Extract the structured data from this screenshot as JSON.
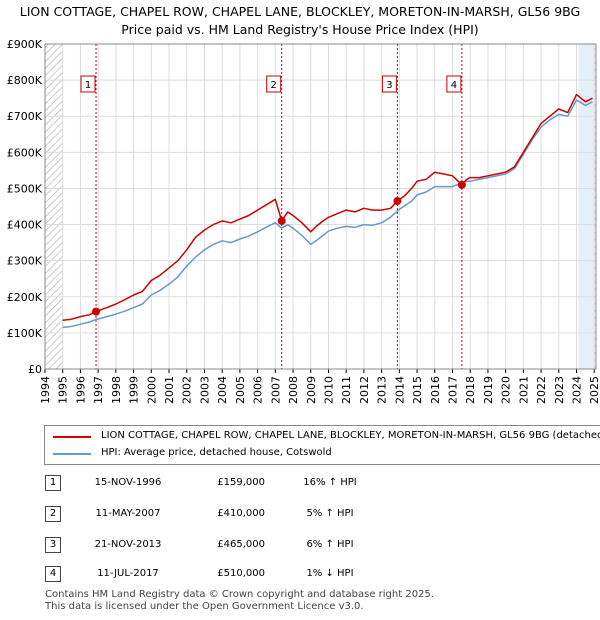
{
  "header": {
    "title_line1": "LION COTTAGE, CHAPEL ROW, CHAPEL LANE, BLOCKLEY, MORETON-IN-MARSH, GL56 9BG",
    "title_line2": "Price paid vs. HM Land Registry's House Price Index (HPI)"
  },
  "colors": {
    "red": "#cc0000",
    "blue": "#6699cc",
    "band": "#e6eef8",
    "grid": "#dddddd"
  },
  "legend": {
    "red_label": "LION COTTAGE, CHAPEL ROW, CHAPEL LANE, BLOCKLEY, MORETON-IN-MARSH, GL56 9BG (detached house)",
    "blue_label": "HPI: Average price, detached house, Cotswold"
  },
  "transactions": [
    {
      "num": "1",
      "date": "15-NOV-1996",
      "price": "£159,000",
      "hpi": "16% ↑ HPI"
    },
    {
      "num": "2",
      "date": "11-MAY-2007",
      "price": "£410,000",
      "hpi": "5% ↑ HPI"
    },
    {
      "num": "3",
      "date": "21-NOV-2013",
      "price": "£465,000",
      "hpi": "6% ↑ HPI"
    },
    {
      "num": "4",
      "date": "11-JUL-2017",
      "price": "£510,000",
      "hpi": "1% ↓ HPI"
    }
  ],
  "footer": {
    "line1": "Contains HM Land Registry data © Crown copyright and database right 2025.",
    "line2": "This data is licensed under the Open Government Licence v3.0."
  },
  "chart_data": {
    "type": "line",
    "title": "LION COTTAGE, CHAPEL ROW, CHAPEL LANE, BLOCKLEY, MORETON-IN-MARSH, GL56 9BG",
    "subtitle": "Price paid vs. HM Land Registry's House Price Index (HPI)",
    "xlabel": "",
    "ylabel": "",
    "xlim": [
      1994,
      2025.1
    ],
    "ylim": [
      0,
      900000
    ],
    "x_ticks": [
      1994,
      1995,
      1996,
      1997,
      1998,
      1999,
      2000,
      2001,
      2002,
      2003,
      2004,
      2005,
      2006,
      2007,
      2008,
      2009,
      2010,
      2011,
      2012,
      2013,
      2014,
      2015,
      2016,
      2017,
      2018,
      2019,
      2020,
      2021,
      2022,
      2023,
      2024,
      2025
    ],
    "y_ticks": [
      0,
      100000,
      200000,
      300000,
      400000,
      500000,
      600000,
      700000,
      800000,
      900000
    ],
    "y_tick_labels": [
      "£0",
      "£100K",
      "£200K",
      "£300K",
      "£400K",
      "£500K",
      "£600K",
      "£700K",
      "£800K",
      "£900K"
    ],
    "grid": true,
    "hatched_regions": [
      [
        1994,
        1995
      ],
      [
        2025,
        2025.1
      ]
    ],
    "band": [
      2024.1,
      2025
    ],
    "series": [
      {
        "name": "LION COTTAGE, CHAPEL ROW, CHAPEL LANE, BLOCKLEY, MORETON-IN-MARSH, GL56 9BG (detached house)",
        "color": "#cc0000",
        "x": [
          1995,
          1995.5,
          1996,
          1996.5,
          1996.88,
          1997.5,
          1998,
          1998.5,
          1999,
          1999.5,
          2000,
          2000.5,
          2001,
          2001.5,
          2002,
          2002.5,
          2003,
          2003.5,
          2004,
          2004.5,
          2005,
          2005.5,
          2006,
          2006.5,
          2007,
          2007.36,
          2007.7,
          2008,
          2008.5,
          2009,
          2009.3,
          2009.7,
          2010,
          2010.5,
          2011,
          2011.5,
          2012,
          2012.5,
          2013,
          2013.5,
          2013.89,
          2014.3,
          2014.7,
          2015,
          2015.5,
          2016,
          2016.5,
          2017,
          2017.53,
          2017.8,
          2018,
          2018.5,
          2019,
          2019.5,
          2020,
          2020.5,
          2021,
          2021.5,
          2022,
          2022.5,
          2023,
          2023.5,
          2024,
          2024.5,
          2024.9
        ],
        "y": [
          135000,
          138000,
          145000,
          150000,
          159000,
          170000,
          180000,
          192000,
          205000,
          215000,
          245000,
          260000,
          280000,
          300000,
          330000,
          365000,
          385000,
          400000,
          410000,
          405000,
          415000,
          425000,
          440000,
          455000,
          470000,
          410000,
          435000,
          425000,
          405000,
          380000,
          395000,
          410000,
          420000,
          430000,
          440000,
          435000,
          445000,
          440000,
          440000,
          445000,
          465000,
          480000,
          500000,
          520000,
          525000,
          545000,
          540000,
          535000,
          510000,
          525000,
          530000,
          530000,
          535000,
          540000,
          545000,
          560000,
          600000,
          640000,
          680000,
          700000,
          720000,
          710000,
          760000,
          740000,
          750000
        ]
      },
      {
        "name": "HPI: Average price, detached house, Cotswold",
        "color": "#6699cc",
        "x": [
          1995,
          1995.5,
          1996,
          1996.5,
          1996.88,
          1997.5,
          1998,
          1998.5,
          1999,
          1999.5,
          2000,
          2000.5,
          2001,
          2001.5,
          2002,
          2002.5,
          2003,
          2003.5,
          2004,
          2004.5,
          2005,
          2005.5,
          2006,
          2006.5,
          2007,
          2007.36,
          2007.7,
          2008,
          2008.5,
          2009,
          2009.3,
          2009.7,
          2010,
          2010.5,
          2011,
          2011.5,
          2012,
          2012.5,
          2013,
          2013.5,
          2013.89,
          2014.3,
          2014.7,
          2015,
          2015.5,
          2016,
          2016.5,
          2017,
          2017.53,
          2017.8,
          2018,
          2018.5,
          2019,
          2019.5,
          2020,
          2020.5,
          2021,
          2021.5,
          2022,
          2022.5,
          2023,
          2023.5,
          2024,
          2024.5,
          2024.9
        ],
        "y": [
          115000,
          118000,
          124000,
          130000,
          137000,
          145000,
          152000,
          160000,
          170000,
          180000,
          205000,
          218000,
          235000,
          255000,
          285000,
          310000,
          330000,
          345000,
          355000,
          350000,
          360000,
          368000,
          380000,
          393000,
          405000,
          390000,
          400000,
          390000,
          370000,
          345000,
          355000,
          370000,
          382000,
          390000,
          395000,
          392000,
          400000,
          398000,
          405000,
          420000,
          438000,
          452000,
          465000,
          482000,
          490000,
          505000,
          505000,
          505000,
          515000,
          520000,
          520000,
          525000,
          530000,
          535000,
          540000,
          555000,
          595000,
          635000,
          670000,
          690000,
          705000,
          700000,
          745000,
          730000,
          740000
        ]
      }
    ],
    "markers": [
      {
        "label": "1",
        "x": 1996.88,
        "y": 159000
      },
      {
        "label": "2",
        "x": 2007.36,
        "y": 410000
      },
      {
        "label": "3",
        "x": 2013.89,
        "y": 465000
      },
      {
        "label": "4",
        "x": 2017.53,
        "y": 510000
      }
    ]
  }
}
